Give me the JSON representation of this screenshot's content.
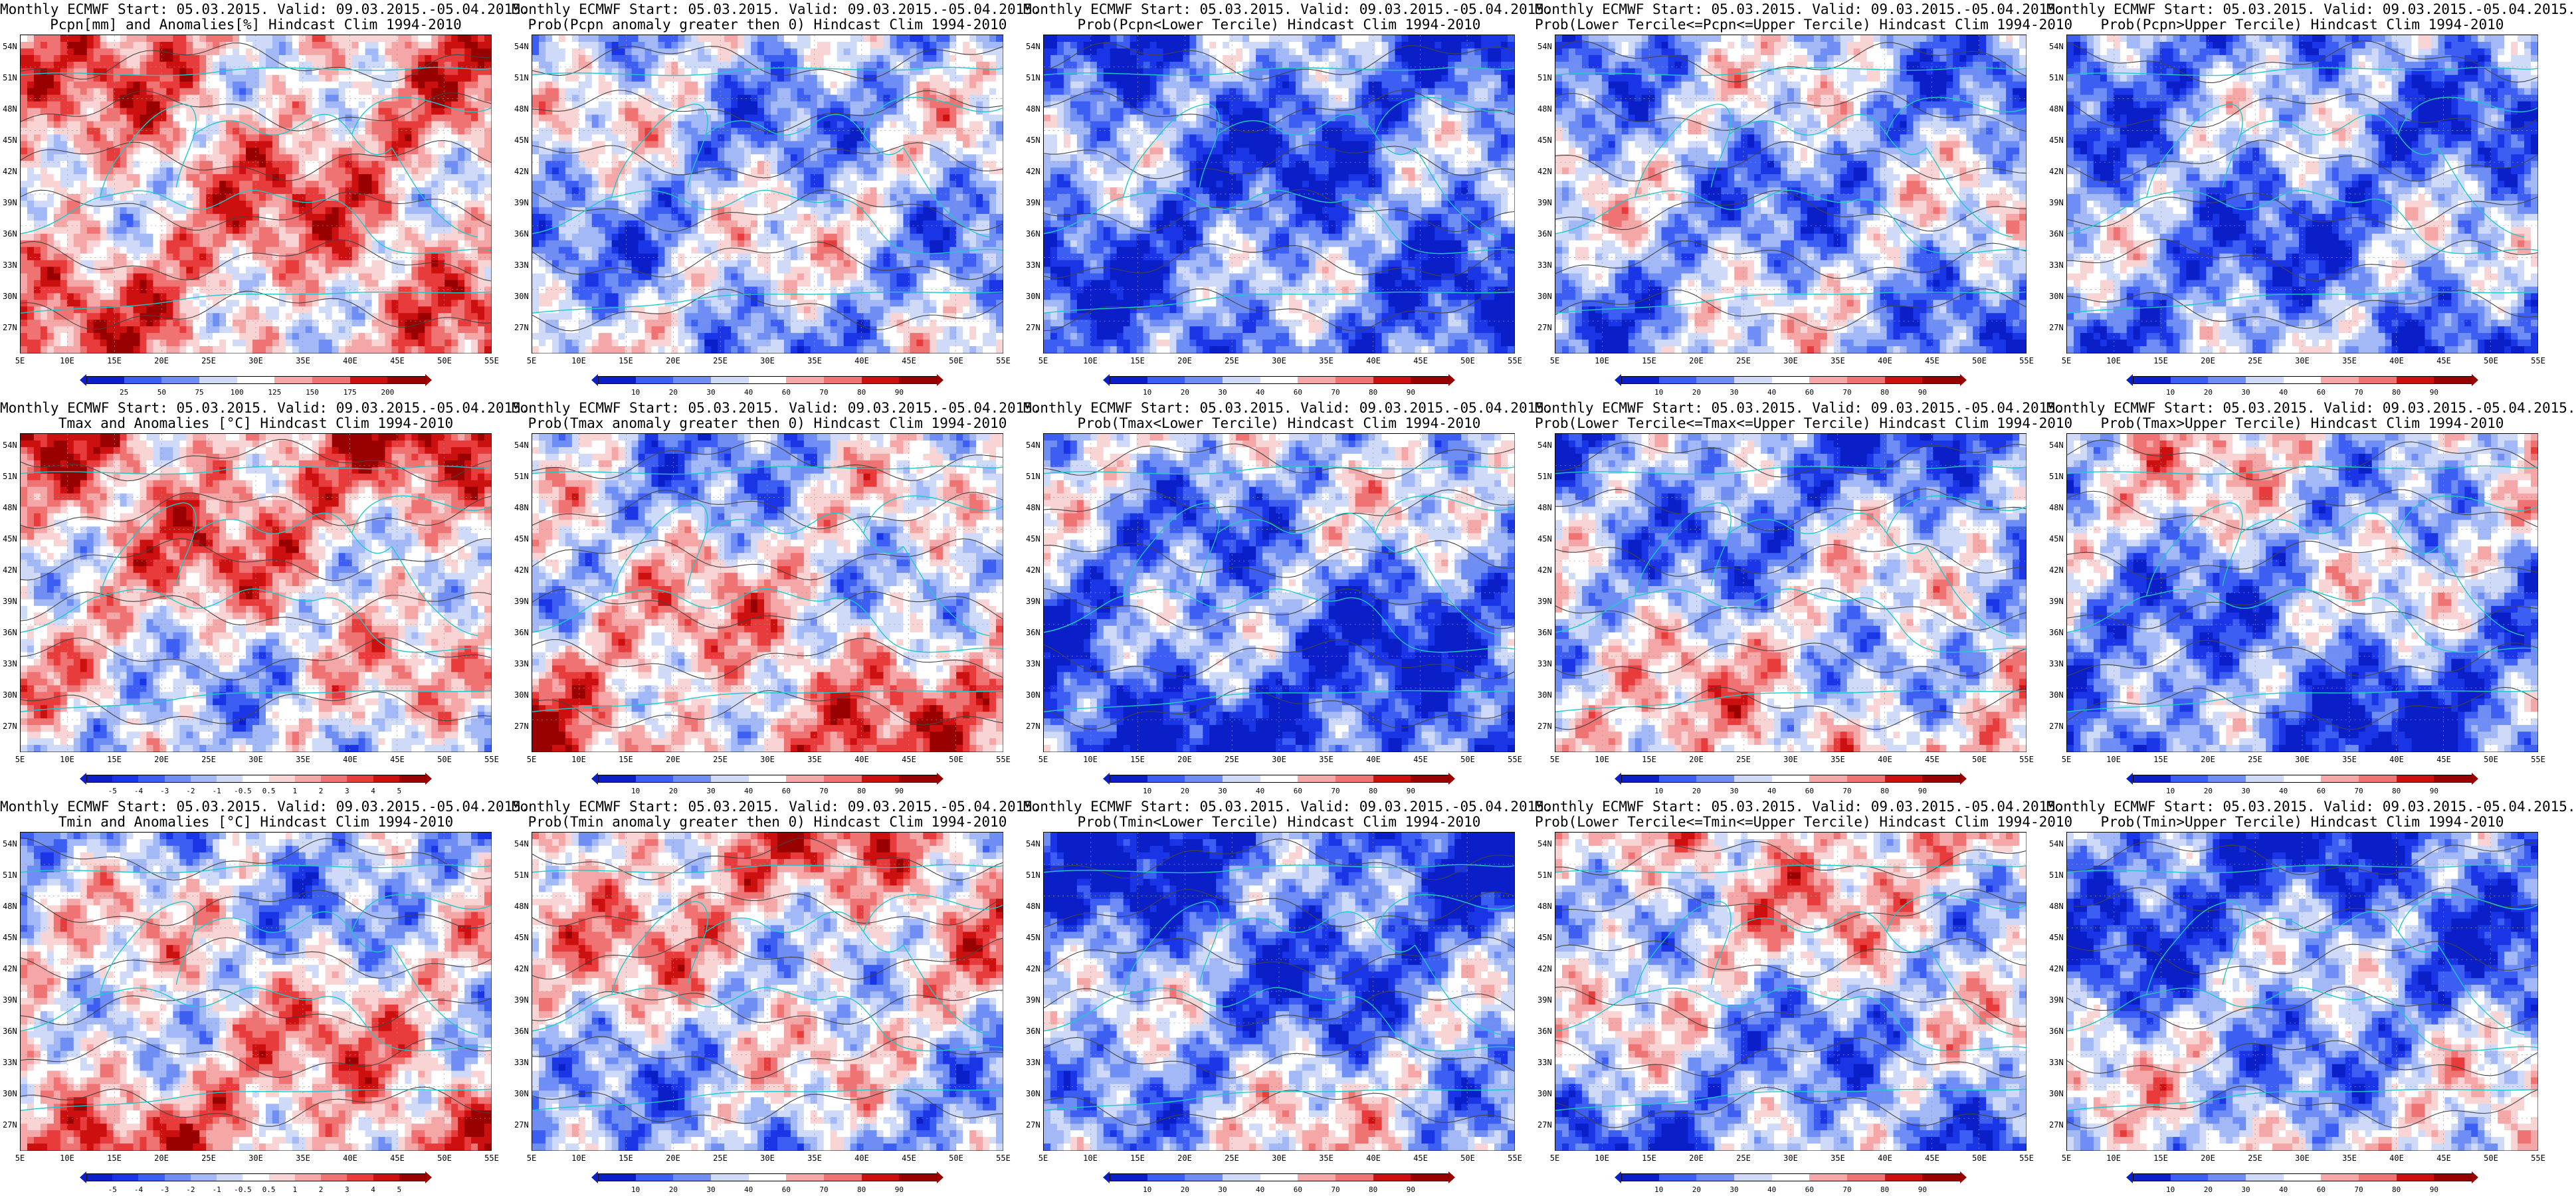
{
  "rows": [
    {
      "variable": "Pcpn",
      "panels": [
        {
          "title1": "Monthly ECMWF Start: 05.03.2015. Valid: 09.03.2015.-05.04.2015.",
          "title2": "Pcpn[mm] and Anomalies[%]",
          "hindcast": "Hindcast Clim 1994-2010",
          "colorbar_ticks": [
            "25",
            "50",
            "75",
            "100",
            "125",
            "150",
            "175",
            "200"
          ],
          "palette": "anom"
        },
        {
          "title1": "Monthly ECMWF Start: 05.03.2015. Valid: 09.03.2015.-05.04.2015.",
          "title2": "Prob(Pcpn anomaly greater then 0)",
          "hindcast": "Hindcast Clim 1994-2010",
          "colorbar_ticks": [
            "10",
            "20",
            "30",
            "40",
            "60",
            "70",
            "80",
            "90"
          ],
          "palette": "prob"
        },
        {
          "title1": "Monthly ECMWF Start: 05.03.2015. Valid: 09.03.2015.-05.04.2015.",
          "title2": "Prob(Pcpn<Lower Tercile)",
          "hindcast": "Hindcast Clim 1994-2010",
          "colorbar_ticks": [
            "10",
            "20",
            "30",
            "40",
            "60",
            "70",
            "80",
            "90"
          ],
          "palette": "prob"
        },
        {
          "title1": "Monthly ECMWF Start: 05.03.2015. Valid: 09.03.2015.-05.04.2015.",
          "title2": "Prob(Lower Tercile<=Pcpn<=Upper Tercile)",
          "hindcast": "Hindcast Clim 1994-2010",
          "colorbar_ticks": [
            "10",
            "20",
            "30",
            "40",
            "60",
            "70",
            "80",
            "90"
          ],
          "palette": "prob"
        },
        {
          "title1": "Monthly ECMWF Start: 05.03.2015. Valid: 09.03.2015.-05.04.2015.",
          "title2": "Prob(Pcpn>Upper Tercile)",
          "hindcast": "Hindcast Clim 1994-2010",
          "colorbar_ticks": [
            "10",
            "20",
            "30",
            "40",
            "60",
            "70",
            "80",
            "90"
          ],
          "palette": "prob"
        }
      ]
    },
    {
      "variable": "Tmax",
      "panels": [
        {
          "title1": "Monthly ECMWF Start: 05.03.2015. Valid: 09.03.2015.-05.04.2015.",
          "title2": "Tmax and Anomalies [°C]",
          "hindcast": "Hindcast Clim 1994-2010",
          "colorbar_ticks": [
            "-5",
            "-4",
            "-3",
            "-2",
            "-1",
            "-0.5",
            "0.5",
            "1",
            "2",
            "3",
            "4",
            "5"
          ],
          "palette": "anom"
        },
        {
          "title1": "Monthly ECMWF Start: 05.03.2015. Valid: 09.03.2015.-05.04.2015.",
          "title2": "Prob(Tmax anomaly greater then 0)",
          "hindcast": "Hindcast Clim 1994-2010",
          "colorbar_ticks": [
            "10",
            "20",
            "30",
            "40",
            "60",
            "70",
            "80",
            "90"
          ],
          "palette": "prob"
        },
        {
          "title1": "Monthly ECMWF Start: 05.03.2015. Valid: 09.03.2015.-05.04.2015.",
          "title2": "Prob(Tmax<Lower Tercile)",
          "hindcast": "Hindcast Clim 1994-2010",
          "colorbar_ticks": [
            "10",
            "20",
            "30",
            "40",
            "60",
            "70",
            "80",
            "90"
          ],
          "palette": "prob"
        },
        {
          "title1": "Monthly ECMWF Start: 05.03.2015. Valid: 09.03.2015.-05.04.2015.",
          "title2": "Prob(Lower Tercile<=Tmax<=Upper Tercile)",
          "hindcast": "Hindcast Clim 1994-2010",
          "colorbar_ticks": [
            "10",
            "20",
            "30",
            "40",
            "60",
            "70",
            "80",
            "90"
          ],
          "palette": "prob"
        },
        {
          "title1": "Monthly ECMWF Start: 05.03.2015. Valid: 09.03.2015.-05.04.2015.",
          "title2": "Prob(Tmax>Upper Tercile)",
          "hindcast": "Hindcast Clim 1994-2010",
          "colorbar_ticks": [
            "10",
            "20",
            "30",
            "40",
            "60",
            "70",
            "80",
            "90"
          ],
          "palette": "prob"
        }
      ]
    },
    {
      "variable": "Tmin",
      "panels": [
        {
          "title1": "Monthly ECMWF Start: 05.03.2015. Valid: 09.03.2015.-05.04.2015.",
          "title2": "Tmin and Anomalies [°C]",
          "hindcast": "Hindcast Clim 1994-2010",
          "colorbar_ticks": [
            "-5",
            "-4",
            "-3",
            "-2",
            "-1",
            "-0.5",
            "0.5",
            "1",
            "2",
            "3",
            "4",
            "5"
          ],
          "palette": "anom"
        },
        {
          "title1": "Monthly ECMWF Start: 05.03.2015. Valid: 09.03.2015.-05.04.2015.",
          "title2": "Prob(Tmin anomaly greater then 0)",
          "hindcast": "Hindcast Clim 1994-2010",
          "colorbar_ticks": [
            "10",
            "20",
            "30",
            "40",
            "60",
            "70",
            "80",
            "90"
          ],
          "palette": "prob"
        },
        {
          "title1": "Monthly ECMWF Start: 05.03.2015. Valid: 09.03.2015.-05.04.2015.",
          "title2": "Prob(Tmin<Lower Tercile)",
          "hindcast": "Hindcast Clim 1994-2010",
          "colorbar_ticks": [
            "10",
            "20",
            "30",
            "40",
            "60",
            "70",
            "80",
            "90"
          ],
          "palette": "prob"
        },
        {
          "title1": "Monthly ECMWF Start: 05.03.2015. Valid: 09.03.2015.-05.04.2015.",
          "title2": "Prob(Lower Tercile<=Tmin<=Upper Tercile)",
          "hindcast": "Hindcast Clim 1994-2010",
          "colorbar_ticks": [
            "10",
            "20",
            "30",
            "40",
            "60",
            "70",
            "80",
            "90"
          ],
          "palette": "prob"
        },
        {
          "title1": "Monthly ECMWF Start: 05.03.2015. Valid: 09.03.2015.-05.04.2015.",
          "title2": "Prob(Tmin>Upper Tercile)",
          "hindcast": "Hindcast Clim 1994-2010",
          "colorbar_ticks": [
            "10",
            "20",
            "30",
            "40",
            "60",
            "70",
            "80",
            "90"
          ],
          "palette": "prob"
        }
      ]
    }
  ],
  "map_axes": {
    "lat_labels": [
      "54N",
      "51N",
      "48N",
      "45N",
      "42N",
      "39N",
      "36N",
      "33N",
      "30N",
      "27N"
    ],
    "lon_labels": [
      "5E",
      "10E",
      "15E",
      "20E",
      "25E",
      "30E",
      "35E",
      "40E",
      "45E",
      "50E",
      "55E"
    ]
  },
  "colors": {
    "palette_13": [
      "#0a1fc8",
      "#1a35e6",
      "#3d5ef2",
      "#6f8ef5",
      "#a3b8f7",
      "#cfdaf9",
      "#ffffff",
      "#f9d4d4",
      "#f5a7a7",
      "#f07373",
      "#e83b3b",
      "#cc1010",
      "#990000"
    ],
    "coast": "#1ec9c9",
    "contour": "#444444"
  },
  "panel_fields": [
    [
      0.3,
      -0.25,
      -0.55,
      -0.3,
      -0.45
    ],
    [
      0.15,
      0.05,
      -0.5,
      -0.2,
      -0.35
    ],
    [
      0.05,
      0.0,
      -0.45,
      -0.15,
      -0.4
    ]
  ]
}
